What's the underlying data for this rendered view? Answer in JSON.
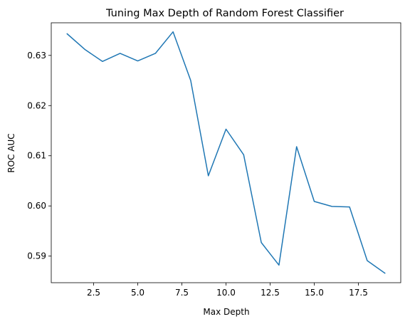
{
  "chart_data": {
    "type": "line",
    "title": "Tuning Max Depth of Random Forest Classifier",
    "xlabel": "Max Depth",
    "ylabel": "ROC AUC",
    "xlim": [
      0.1,
      19.9
    ],
    "ylim": [
      0.5847,
      0.6365
    ],
    "xticks": [
      2.5,
      5.0,
      7.5,
      10.0,
      12.5,
      15.0,
      17.5
    ],
    "xtick_labels": [
      "2.5",
      "5.0",
      "7.5",
      "10.0",
      "12.5",
      "15.0",
      "17.5"
    ],
    "yticks": [
      0.59,
      0.6,
      0.61,
      0.62,
      0.63
    ],
    "ytick_labels": [
      "0.59",
      "0.60",
      "0.61",
      "0.62",
      "0.63"
    ],
    "grid": false,
    "series": [
      {
        "color": "#1f77b4",
        "x": [
          1,
          2,
          3,
          4,
          5,
          6,
          7,
          8,
          9,
          10,
          11,
          12,
          13,
          14,
          15,
          16,
          17,
          18,
          19
        ],
        "y": [
          0.6343,
          0.6312,
          0.6288,
          0.6304,
          0.6289,
          0.6304,
          0.6347,
          0.625,
          0.606,
          0.6153,
          0.6102,
          0.5927,
          0.5882,
          0.6118,
          0.6009,
          0.5999,
          0.5998,
          0.5891,
          0.5866
        ]
      }
    ]
  }
}
